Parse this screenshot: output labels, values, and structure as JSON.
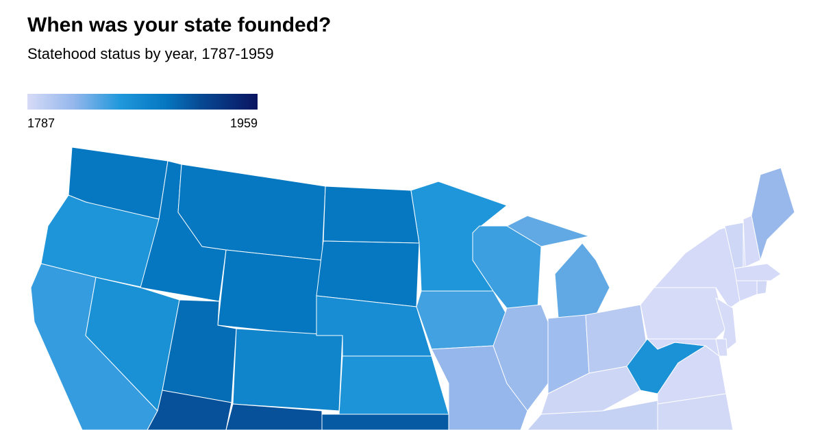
{
  "header": {
    "title": "When was your state founded?",
    "subtitle": "Statehood status by year, 1787-1959"
  },
  "legend": {
    "min": 1787,
    "max": 1959,
    "stops": [
      {
        "offset": 0,
        "color": "#d6dbf7"
      },
      {
        "offset": 0.2,
        "color": "#95b7ec"
      },
      {
        "offset": 0.4,
        "color": "#2198dc"
      },
      {
        "offset": 0.6,
        "color": "#0577c0"
      },
      {
        "offset": 0.75,
        "color": "#074a94"
      },
      {
        "offset": 1,
        "color": "#0a1460"
      }
    ]
  },
  "map": {
    "states": [
      1889,
      1859,
      1850,
      1864,
      1890,
      1889,
      1890,
      1889,
      1889,
      1896,
      1876,
      1912,
      1912,
      1867,
      1861,
      1907,
      1858,
      1846,
      1821,
      1848,
      1818,
      1837,
      1837,
      1816,
      1803,
      1792,
      1796,
      1863,
      1788,
      1789,
      1787,
      1788,
      1787,
      1788,
      1787,
      1791,
      1788,
      1820,
      1788,
      1788,
      1790
    ]
  }
}
